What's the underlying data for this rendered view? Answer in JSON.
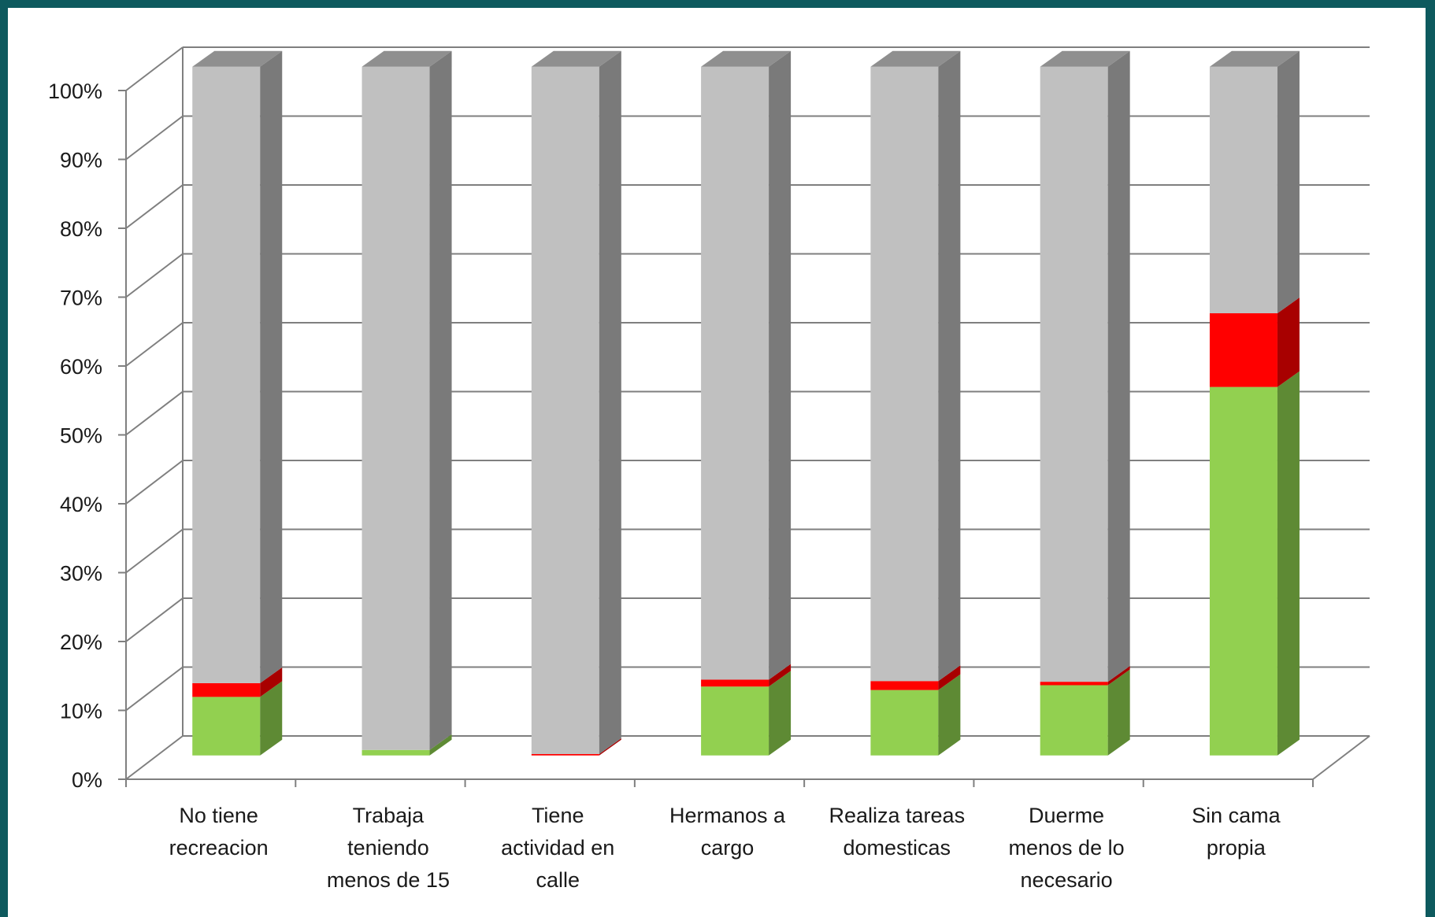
{
  "chart_data": {
    "type": "bar",
    "stacked": true,
    "percent_stacked": true,
    "three_d": true,
    "grid": true,
    "legend": "none",
    "ylim": [
      0,
      100
    ],
    "y_ticks": [
      "0%",
      "10%",
      "20%",
      "30%",
      "40%",
      "50%",
      "60%",
      "70%",
      "80%",
      "90%",
      "100%"
    ],
    "categories": [
      [
        "No tiene",
        "recreacion"
      ],
      [
        "Trabaja",
        "teniendo",
        "menos de 15"
      ],
      [
        "Tiene",
        "actividad en",
        "calle"
      ],
      [
        "Hermanos a",
        "cargo"
      ],
      [
        "Realiza tareas",
        "domesticas"
      ],
      [
        "Duerme",
        "menos de lo",
        "necesario"
      ],
      [
        "Sin cama",
        "propia"
      ]
    ],
    "series": [
      {
        "color": "#92d050",
        "side_color": "#5e8a34",
        "top_color": "#a9dd72",
        "values": [
          8.5,
          0.8,
          0,
          10,
          9.5,
          10.2,
          53.5
        ]
      },
      {
        "color": "#ff0000",
        "side_color": "#a80000",
        "top_color": "#ff4d4d",
        "values": [
          2.0,
          0,
          0.2,
          1.0,
          1.3,
          0.5,
          10.7
        ]
      },
      {
        "color": "#c0c0c0",
        "side_color": "#7a7a7a",
        "top_color": "#8f8f8f",
        "values": [
          89.5,
          99.2,
          99.8,
          89.0,
          89.2,
          89.3,
          35.8
        ]
      }
    ]
  }
}
